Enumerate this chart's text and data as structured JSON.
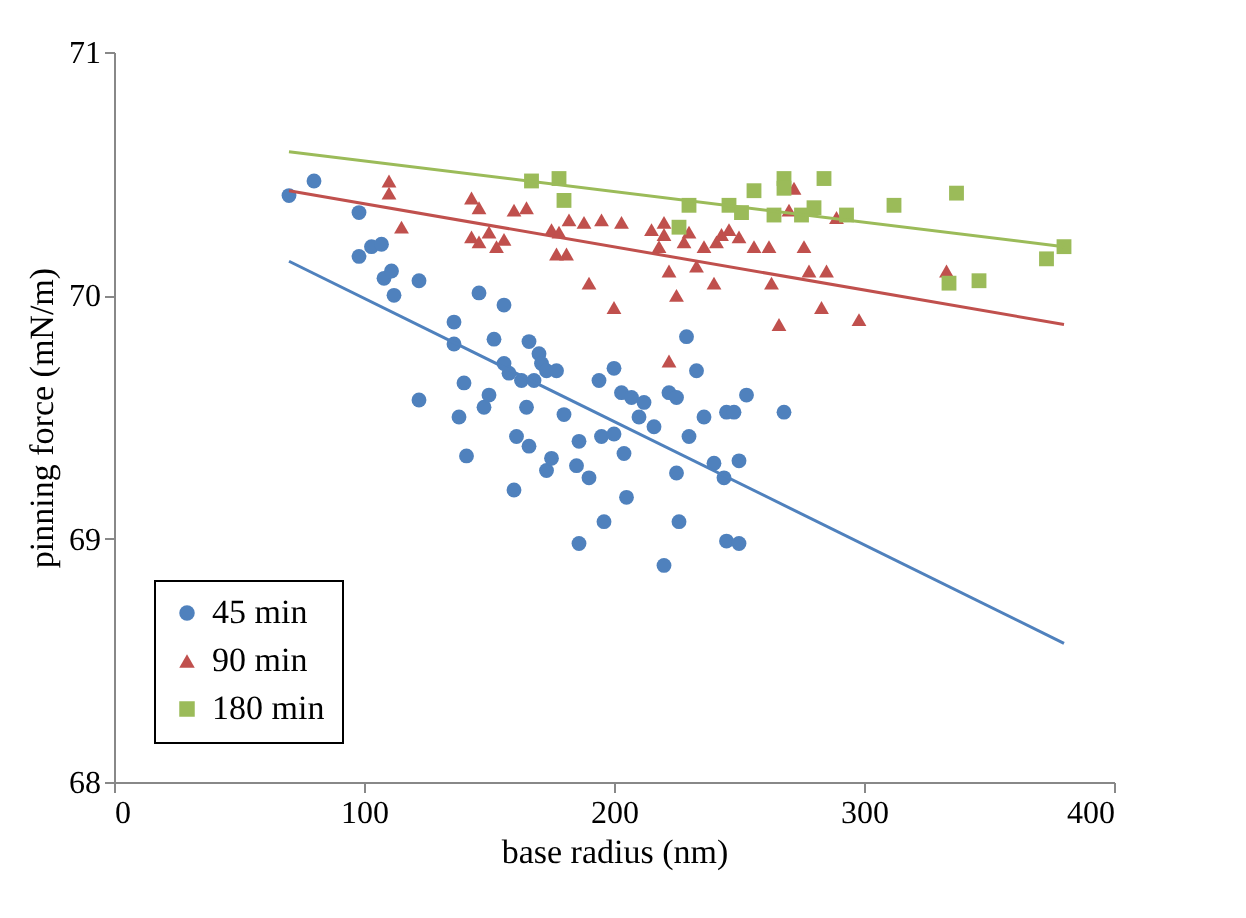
{
  "chart_data": {
    "type": "scatter",
    "xlabel": "base radius (nm)",
    "ylabel": "pinning force (mN/m)",
    "xlim": [
      0,
      400
    ],
    "xticks": [
      0,
      100,
      200,
      300,
      400
    ],
    "ylim": [
      68,
      71
    ],
    "yticks": [
      68,
      69,
      70,
      71
    ],
    "grid": false,
    "legend": "bottom left",
    "series": [
      {
        "name": "45 min",
        "marker": "circle",
        "color": "#4f81bd",
        "x": [
          70,
          80,
          98,
          98,
          103,
          107,
          108,
          111,
          112,
          122,
          122,
          136,
          136,
          138,
          140,
          141,
          146,
          148,
          150,
          152,
          156,
          156,
          158,
          160,
          161,
          163,
          165,
          166,
          166,
          168,
          170,
          171,
          173,
          173,
          175,
          177,
          180,
          185,
          186,
          186,
          190,
          194,
          195,
          196,
          200,
          200,
          203,
          204,
          205,
          207,
          210,
          212,
          216,
          220,
          222,
          225,
          225,
          226,
          229,
          230,
          233,
          236,
          240,
          244,
          245,
          245,
          248,
          250,
          250,
          253,
          268
        ],
        "values": [
          70.41,
          70.47,
          70.34,
          70.16,
          70.2,
          70.21,
          70.07,
          70.1,
          70.0,
          70.06,
          69.57,
          69.89,
          69.8,
          69.5,
          69.64,
          69.34,
          70.01,
          69.54,
          69.59,
          69.82,
          69.96,
          69.72,
          69.68,
          69.2,
          69.42,
          69.65,
          69.54,
          69.81,
          69.38,
          69.65,
          69.76,
          69.72,
          69.69,
          69.28,
          69.33,
          69.69,
          69.51,
          69.3,
          69.4,
          68.98,
          69.25,
          69.65,
          69.42,
          69.07,
          69.7,
          69.43,
          69.6,
          69.35,
          69.17,
          69.58,
          69.5,
          69.56,
          69.46,
          68.89,
          69.6,
          69.58,
          69.27,
          69.07,
          69.83,
          69.42,
          69.69,
          69.5,
          69.31,
          69.25,
          69.52,
          68.99,
          69.52,
          68.98,
          69.32,
          69.59,
          69.52
        ]
      },
      {
        "name": "90 min",
        "marker": "triangle",
        "color": "#c0504d",
        "x": [
          110,
          110,
          115,
          143,
          146,
          150,
          156,
          160,
          165,
          143,
          146,
          153,
          175,
          177,
          178,
          181,
          182,
          188,
          190,
          195,
          200,
          203,
          215,
          218,
          220,
          222,
          225,
          228,
          230,
          233,
          236,
          240,
          241,
          243,
          246,
          250,
          256,
          262,
          263,
          266,
          270,
          272,
          276,
          278,
          283,
          285,
          289,
          298,
          333,
          222,
          220
        ],
        "values": [
          70.47,
          70.42,
          70.28,
          70.4,
          70.36,
          70.26,
          70.23,
          70.35,
          70.36,
          70.24,
          70.22,
          70.2,
          70.27,
          70.17,
          70.26,
          70.17,
          70.31,
          70.3,
          70.05,
          70.31,
          69.95,
          70.3,
          70.27,
          70.2,
          70.3,
          70.1,
          70.0,
          70.22,
          70.26,
          70.12,
          70.2,
          70.05,
          70.22,
          70.25,
          70.27,
          70.24,
          70.2,
          70.2,
          70.05,
          69.88,
          70.35,
          70.44,
          70.2,
          70.1,
          69.95,
          70.1,
          70.32,
          69.9,
          70.1,
          69.73,
          70.25
        ]
      },
      {
        "name": "180 min",
        "marker": "square",
        "color": "#9bbb59",
        "x": [
          167,
          180,
          178,
          226,
          230,
          246,
          251,
          256,
          264,
          268,
          268,
          275,
          280,
          284,
          293,
          312,
          334,
          337,
          346,
          373,
          380
        ],
        "values": [
          70.47,
          70.39,
          70.48,
          70.28,
          70.37,
          70.37,
          70.34,
          70.43,
          70.33,
          70.48,
          70.44,
          70.33,
          70.36,
          70.48,
          70.33,
          70.37,
          70.05,
          70.42,
          70.06,
          70.15,
          70.2
        ]
      },
      {
        "type": "line",
        "color": "#4f81bd",
        "x": [
          70,
          380
        ],
        "values": [
          70.14,
          68.57
        ]
      },
      {
        "type": "line",
        "color": "#c0504d",
        "x": [
          70,
          380
        ],
        "values": [
          70.43,
          69.88
        ]
      },
      {
        "type": "line",
        "color": "#9bbb59",
        "x": [
          70,
          380
        ],
        "values": [
          70.59,
          70.2
        ]
      }
    ]
  }
}
